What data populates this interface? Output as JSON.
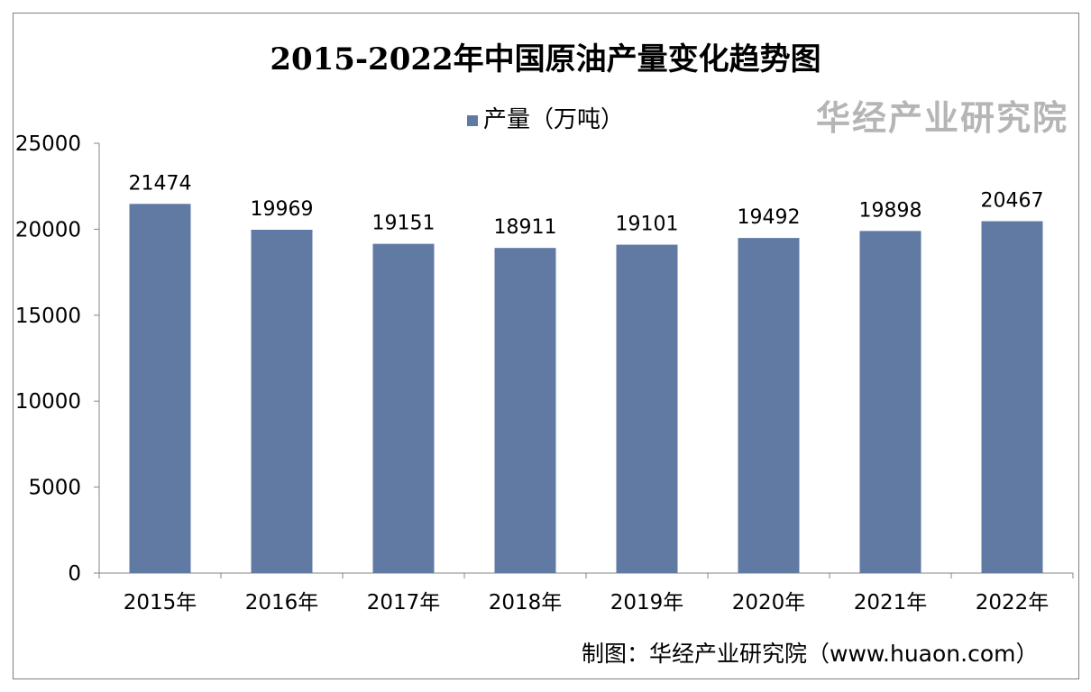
{
  "chart_data": {
    "type": "bar",
    "title": "2015-2022年中国原油产量变化趋势图",
    "categories": [
      "2015年",
      "2016年",
      "2017年",
      "2018年",
      "2019年",
      "2020年",
      "2021年",
      "2022年"
    ],
    "series": [
      {
        "name": "产量（万吨）",
        "values": [
          21474,
          19969,
          19151,
          18911,
          19101,
          19492,
          19898,
          20467
        ]
      }
    ],
    "ylim": [
      0,
      25000
    ],
    "yticks": [
      0,
      5000,
      10000,
      15000,
      20000,
      25000
    ],
    "xlabel": "",
    "ylabel": "",
    "legend": "top",
    "grid": false,
    "bar_color": "#607aa4"
  },
  "source": "制图：华经产业研究院（www.huaon.com）",
  "watermark": "华经产业研究院"
}
